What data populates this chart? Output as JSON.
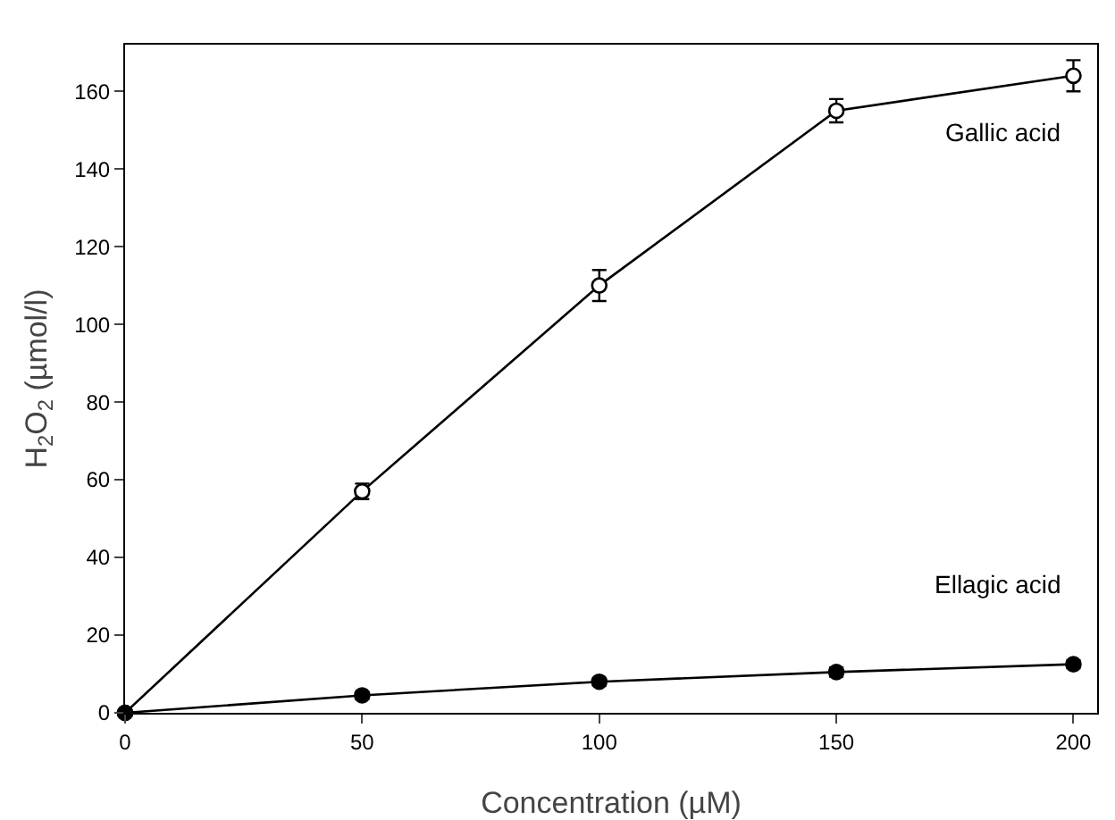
{
  "chart_data": {
    "type": "line",
    "xlabel": "Concentration (µM)",
    "ylabel": "H$_{2}$O$_{2}$ (µmol/l)",
    "x": [
      0,
      50,
      100,
      150,
      200
    ],
    "series": [
      {
        "name": "Gallic acid",
        "color": "#000000",
        "values": [
          0,
          57,
          110,
          155,
          164
        ],
        "errors": [
          null,
          2,
          4,
          3,
          4
        ]
      },
      {
        "name": "Ellagic acid",
        "color": "#000000",
        "values": [
          0,
          4.5,
          8,
          10.5,
          12.5
        ],
        "errors": [
          null,
          1,
          1,
          1.2,
          1
        ]
      }
    ],
    "xlim": [
      0,
      205
    ],
    "ylim": [
      0,
      172
    ],
    "xticks": [
      0,
      50,
      100,
      150,
      200
    ],
    "yticks": [
      0,
      20,
      40,
      60,
      80,
      100,
      120,
      140,
      160
    ],
    "grid": false,
    "marker": "circle",
    "line_style": "solid"
  }
}
